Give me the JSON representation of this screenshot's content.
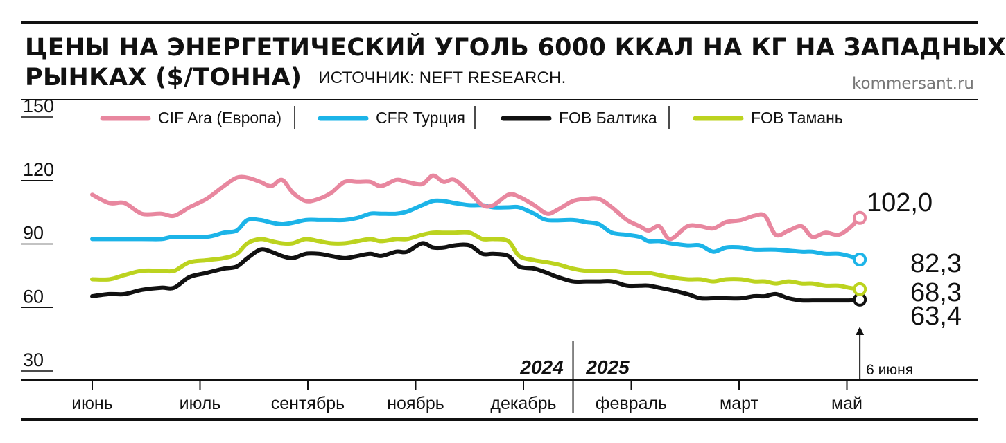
{
  "header": {
    "title_line1": "ЦЕНЫ НА ЭНЕРГЕТИЧЕСКИЙ УГОЛЬ 6000 ККАЛ НА КГ НА ЗАПАДНЫХ",
    "title_line2": "РЫНКАХ ($/ТОННА)",
    "source": "ИСТОЧНИК: NEFT RESEARCH.",
    "site": "kommersant.ru"
  },
  "chart_data": {
    "type": "line",
    "title": "ЦЕНЫ НА ЭНЕРГЕТИЧЕСКИЙ УГОЛЬ 6000 ККАЛ НА КГ НА ЗАПАДНЫХ РЫНКАХ ($/ТОННА)",
    "ylim": [
      30,
      150
    ],
    "yticks": [
      150,
      120,
      90,
      60,
      30
    ],
    "xlim": [
      0,
      53
    ],
    "x_ticks": [
      {
        "x": 0,
        "label": "июнь"
      },
      {
        "x": 5,
        "label": "июль"
      },
      {
        "x": 10,
        "label": "сентябрь"
      },
      {
        "x": 15,
        "label": "ноябрь"
      },
      {
        "x": 20,
        "label": "декабрь"
      },
      {
        "x": 25,
        "label": "февраль"
      },
      {
        "x": 30,
        "label": "март"
      },
      {
        "x": 35,
        "label": "май"
      }
    ],
    "years": [
      {
        "label": "2024",
        "side": "left"
      },
      {
        "label": "2025",
        "side": "right"
      }
    ],
    "year_divider_x": 22.3,
    "end_date_label": "6 июня",
    "grid": false,
    "legend_position": "top",
    "series": [
      {
        "name": "CIF Ara (Европа)",
        "color": "#e8879f",
        "points": [
          [
            0,
            113
          ],
          [
            0.8,
            109
          ],
          [
            1.5,
            109
          ],
          [
            2.3,
            104
          ],
          [
            3.2,
            104
          ],
          [
            3.8,
            103
          ],
          [
            4.5,
            107
          ],
          [
            5.3,
            111
          ],
          [
            6.1,
            117
          ],
          [
            6.7,
            121
          ],
          [
            7.2,
            121
          ],
          [
            7.8,
            119
          ],
          [
            8.3,
            117
          ],
          [
            8.8,
            120
          ],
          [
            9.3,
            114
          ],
          [
            9.9,
            110
          ],
          [
            10.5,
            111
          ],
          [
            11.1,
            114
          ],
          [
            11.7,
            119
          ],
          [
            12.3,
            119
          ],
          [
            12.9,
            119
          ],
          [
            13.4,
            117
          ],
          [
            14.1,
            120
          ],
          [
            14.6,
            119
          ],
          [
            15.3,
            118
          ],
          [
            15.8,
            122
          ],
          [
            16.3,
            119
          ],
          [
            16.8,
            120
          ],
          [
            17.5,
            114
          ],
          [
            18.1,
            108
          ],
          [
            18.6,
            108
          ],
          [
            19.3,
            113
          ],
          [
            19.8,
            112
          ],
          [
            20.5,
            108
          ],
          [
            21.1,
            104
          ],
          [
            21.6,
            106
          ],
          [
            22.3,
            110
          ],
          [
            22.9,
            111
          ],
          [
            23.5,
            111
          ],
          [
            24.1,
            107
          ],
          [
            24.8,
            101
          ],
          [
            25.4,
            98
          ],
          [
            25.8,
            96
          ],
          [
            26.3,
            98
          ],
          [
            26.8,
            92
          ],
          [
            27.6,
            98
          ],
          [
            28.2,
            98
          ],
          [
            28.8,
            97
          ],
          [
            29.4,
            100
          ],
          [
            30.1,
            101
          ],
          [
            30.7,
            103
          ],
          [
            31.2,
            103
          ],
          [
            31.7,
            94
          ],
          [
            32.3,
            96
          ],
          [
            32.9,
            98
          ],
          [
            33.4,
            93
          ],
          [
            34,
            95
          ],
          [
            34.6,
            94
          ],
          [
            35.1,
            97
          ],
          [
            35.6,
            102
          ]
        ],
        "end_label": "102,0"
      },
      {
        "name": "CFR Турция",
        "color": "#1cb4e8",
        "points": [
          [
            0,
            92
          ],
          [
            2.3,
            92
          ],
          [
            3.2,
            92
          ],
          [
            3.8,
            93
          ],
          [
            5.3,
            93
          ],
          [
            6.1,
            95
          ],
          [
            6.7,
            96
          ],
          [
            7.2,
            101
          ],
          [
            7.8,
            101
          ],
          [
            8.8,
            99
          ],
          [
            9.9,
            101
          ],
          [
            10.5,
            101
          ],
          [
            11.1,
            101
          ],
          [
            11.7,
            101
          ],
          [
            12.3,
            102
          ],
          [
            12.9,
            104
          ],
          [
            13.4,
            104
          ],
          [
            14.1,
            104
          ],
          [
            14.6,
            105
          ],
          [
            15.3,
            108
          ],
          [
            15.8,
            110
          ],
          [
            16.3,
            110
          ],
          [
            16.8,
            109
          ],
          [
            17.5,
            108
          ],
          [
            18.1,
            108
          ],
          [
            18.6,
            107
          ],
          [
            19.3,
            107
          ],
          [
            19.8,
            107
          ],
          [
            20.5,
            104
          ],
          [
            21.1,
            101
          ],
          [
            22.3,
            101
          ],
          [
            22.9,
            100
          ],
          [
            23.5,
            99
          ],
          [
            24.1,
            95
          ],
          [
            24.8,
            94
          ],
          [
            25.4,
            93
          ],
          [
            25.8,
            91
          ],
          [
            26.3,
            91
          ],
          [
            26.8,
            90
          ],
          [
            27.6,
            89
          ],
          [
            28.2,
            89
          ],
          [
            28.8,
            86
          ],
          [
            29.4,
            88
          ],
          [
            30.1,
            88
          ],
          [
            30.7,
            87
          ],
          [
            31.7,
            87
          ],
          [
            32.9,
            86
          ],
          [
            33.4,
            86
          ],
          [
            34,
            85
          ],
          [
            34.6,
            85
          ],
          [
            35.1,
            84
          ],
          [
            35.6,
            82.3
          ]
        ],
        "end_label": "82,3"
      },
      {
        "name": "FOB Балтика",
        "color": "#111111",
        "points": [
          [
            0,
            65
          ],
          [
            0.8,
            66
          ],
          [
            1.5,
            66
          ],
          [
            2.3,
            68
          ],
          [
            3.2,
            69
          ],
          [
            3.8,
            69
          ],
          [
            4.5,
            74
          ],
          [
            5.3,
            76
          ],
          [
            6.1,
            78
          ],
          [
            6.7,
            79
          ],
          [
            7.2,
            83
          ],
          [
            7.8,
            87
          ],
          [
            8.3,
            86
          ],
          [
            8.8,
            84
          ],
          [
            9.3,
            83
          ],
          [
            9.9,
            85
          ],
          [
            10.5,
            85
          ],
          [
            11.1,
            84
          ],
          [
            11.7,
            83
          ],
          [
            12.3,
            84
          ],
          [
            12.9,
            85
          ],
          [
            13.4,
            84
          ],
          [
            14.1,
            86
          ],
          [
            14.6,
            86
          ],
          [
            15.3,
            90
          ],
          [
            15.8,
            88
          ],
          [
            16.3,
            88
          ],
          [
            16.8,
            89
          ],
          [
            17.5,
            89
          ],
          [
            18.1,
            85
          ],
          [
            18.6,
            85
          ],
          [
            19.3,
            84
          ],
          [
            19.8,
            79
          ],
          [
            20.5,
            78
          ],
          [
            21.1,
            76
          ],
          [
            21.6,
            74
          ],
          [
            22.3,
            72
          ],
          [
            22.9,
            72
          ],
          [
            23.5,
            72
          ],
          [
            24.1,
            72
          ],
          [
            24.8,
            70
          ],
          [
            25.4,
            70
          ],
          [
            25.8,
            70
          ],
          [
            26.3,
            69
          ],
          [
            26.8,
            68
          ],
          [
            27.6,
            66
          ],
          [
            28.2,
            64
          ],
          [
            28.8,
            64
          ],
          [
            29.4,
            64
          ],
          [
            30.1,
            64
          ],
          [
            30.7,
            65
          ],
          [
            31.2,
            65
          ],
          [
            31.7,
            66
          ],
          [
            32.3,
            64
          ],
          [
            32.9,
            63
          ],
          [
            33.4,
            63
          ],
          [
            34,
            63
          ],
          [
            34.6,
            63
          ],
          [
            35.1,
            63
          ],
          [
            35.6,
            63.4
          ]
        ],
        "end_label": "63,4"
      },
      {
        "name": "FOB Тамань",
        "color": "#bcd31f",
        "points": [
          [
            0,
            73
          ],
          [
            0.8,
            73
          ],
          [
            1.5,
            75
          ],
          [
            2.3,
            77
          ],
          [
            3.2,
            77
          ],
          [
            3.8,
            77
          ],
          [
            4.5,
            81
          ],
          [
            5.3,
            82
          ],
          [
            6.1,
            83
          ],
          [
            6.7,
            85
          ],
          [
            7.2,
            90
          ],
          [
            7.8,
            92
          ],
          [
            8.3,
            91
          ],
          [
            8.8,
            90
          ],
          [
            9.3,
            90
          ],
          [
            9.9,
            92
          ],
          [
            10.5,
            91
          ],
          [
            11.1,
            90
          ],
          [
            11.7,
            90
          ],
          [
            12.3,
            91
          ],
          [
            12.9,
            92
          ],
          [
            13.4,
            91
          ],
          [
            14.1,
            92
          ],
          [
            14.6,
            92
          ],
          [
            15.3,
            94
          ],
          [
            15.8,
            95
          ],
          [
            16.3,
            95
          ],
          [
            16.8,
            95
          ],
          [
            17.5,
            95
          ],
          [
            18.1,
            92
          ],
          [
            18.6,
            92
          ],
          [
            19.3,
            91
          ],
          [
            19.8,
            84
          ],
          [
            20.5,
            82
          ],
          [
            21.1,
            81
          ],
          [
            21.6,
            80
          ],
          [
            22.3,
            78
          ],
          [
            22.9,
            77
          ],
          [
            23.5,
            77
          ],
          [
            24.1,
            77
          ],
          [
            24.8,
            76
          ],
          [
            25.4,
            76
          ],
          [
            25.8,
            76
          ],
          [
            26.3,
            75
          ],
          [
            26.8,
            74
          ],
          [
            27.6,
            73
          ],
          [
            28.2,
            73
          ],
          [
            28.8,
            72
          ],
          [
            29.4,
            73
          ],
          [
            30.1,
            73
          ],
          [
            30.7,
            72
          ],
          [
            31.2,
            72
          ],
          [
            31.7,
            71
          ],
          [
            32.3,
            72
          ],
          [
            32.9,
            71
          ],
          [
            33.4,
            71
          ],
          [
            34,
            70
          ],
          [
            34.6,
            70
          ],
          [
            35.1,
            69
          ],
          [
            35.6,
            68.3
          ]
        ],
        "end_label": "68,3"
      }
    ]
  }
}
